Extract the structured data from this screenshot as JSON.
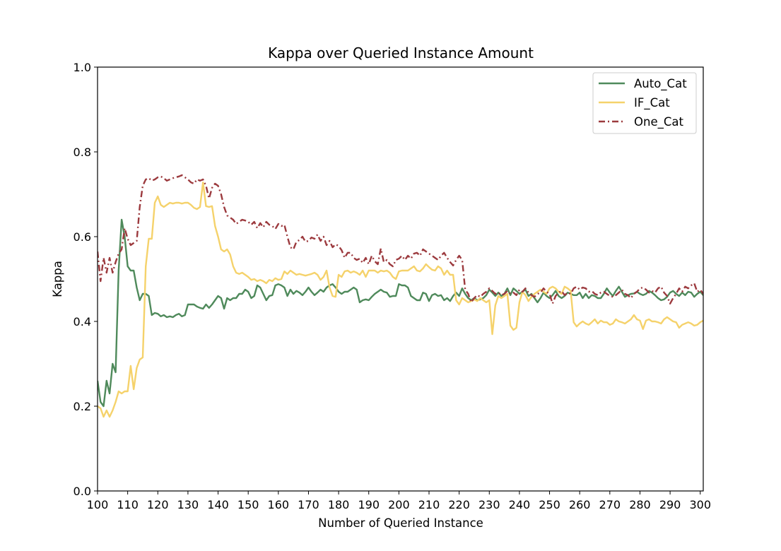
{
  "chart_data": {
    "type": "line",
    "title": "Kappa over Queried Instance Amount",
    "xlabel": "Number of Queried Instance",
    "ylabel": "Kappa",
    "xlim": [
      100,
      301
    ],
    "ylim": [
      0.0,
      1.0
    ],
    "x_ticks": [
      100,
      110,
      120,
      130,
      140,
      150,
      160,
      170,
      180,
      190,
      200,
      210,
      220,
      230,
      240,
      250,
      260,
      270,
      280,
      290,
      300
    ],
    "x_tick_labels": [
      "100",
      "110",
      "120",
      "130",
      "140",
      "150",
      "160",
      "170",
      "180",
      "190",
      "200",
      "210",
      "220",
      "230",
      "240",
      "250",
      "260",
      "270",
      "280",
      "290",
      "300"
    ],
    "y_ticks": [
      0.0,
      0.2,
      0.4,
      0.6,
      0.8,
      1.0
    ],
    "y_tick_labels": [
      "0.0",
      "0.2",
      "0.4",
      "0.6",
      "0.8",
      "1.0"
    ],
    "grid": false,
    "legend_position": "top-right",
    "x_start": 100,
    "x_step": 1,
    "series": [
      {
        "name": "Auto_Cat",
        "color": "#4f8a5b",
        "dash": "solid",
        "values": [
          0.26,
          0.21,
          0.2,
          0.26,
          0.23,
          0.3,
          0.28,
          0.52,
          0.64,
          0.6,
          0.53,
          0.52,
          0.52,
          0.48,
          0.45,
          0.465,
          0.465,
          0.46,
          0.415,
          0.42,
          0.418,
          0.412,
          0.415,
          0.41,
          0.412,
          0.41,
          0.415,
          0.418,
          0.412,
          0.415,
          0.44,
          0.44,
          0.44,
          0.435,
          0.432,
          0.43,
          0.44,
          0.432,
          0.44,
          0.45,
          0.46,
          0.455,
          0.43,
          0.455,
          0.45,
          0.455,
          0.455,
          0.465,
          0.465,
          0.475,
          0.47,
          0.455,
          0.46,
          0.485,
          0.48,
          0.465,
          0.45,
          0.46,
          0.462,
          0.485,
          0.488,
          0.485,
          0.48,
          0.46,
          0.475,
          0.465,
          0.472,
          0.468,
          0.462,
          0.47,
          0.48,
          0.47,
          0.462,
          0.468,
          0.475,
          0.47,
          0.48,
          0.485,
          0.488,
          0.48,
          0.47,
          0.465,
          0.47,
          0.47,
          0.475,
          0.48,
          0.475,
          0.445,
          0.45,
          0.452,
          0.45,
          0.458,
          0.465,
          0.47,
          0.475,
          0.47,
          0.468,
          0.458,
          0.46,
          0.46,
          0.488,
          0.485,
          0.485,
          0.48,
          0.46,
          0.455,
          0.45,
          0.45,
          0.468,
          0.465,
          0.448,
          0.462,
          0.465,
          0.46,
          0.462,
          0.45,
          0.455,
          0.448,
          0.46,
          0.468,
          0.46,
          0.478,
          0.465,
          0.455,
          0.45,
          0.455,
          0.45,
          0.452,
          0.455,
          0.462,
          0.475,
          0.468,
          0.46,
          0.468,
          0.46,
          0.465,
          0.478,
          0.462,
          0.478,
          0.472,
          0.465,
          0.47,
          0.475,
          0.46,
          0.465,
          0.455,
          0.445,
          0.455,
          0.468,
          0.46,
          0.455,
          0.462,
          0.472,
          0.46,
          0.455,
          0.46,
          0.468,
          0.465,
          0.462,
          0.462,
          0.468,
          0.455,
          0.465,
          0.455,
          0.462,
          0.46,
          0.455,
          0.455,
          0.465,
          0.478,
          0.468,
          0.46,
          0.472,
          0.482,
          0.47,
          0.458,
          0.462,
          0.465,
          0.466,
          0.47,
          0.465,
          0.462,
          0.465,
          0.472,
          0.468,
          0.462,
          0.455,
          0.45,
          0.452,
          0.458,
          0.468,
          0.472,
          0.465,
          0.46,
          0.468,
          0.462,
          0.47,
          0.468,
          0.458,
          0.465,
          0.47,
          0.462,
          0.46,
          0.468,
          0.465,
          0.462
        ]
      },
      {
        "name": "IF_Cat",
        "color": "#f5d26b",
        "dash": "solid",
        "values": [
          0.2,
          0.195,
          0.175,
          0.19,
          0.175,
          0.19,
          0.21,
          0.235,
          0.23,
          0.235,
          0.235,
          0.295,
          0.24,
          0.29,
          0.31,
          0.315,
          0.53,
          0.595,
          0.595,
          0.68,
          0.695,
          0.675,
          0.67,
          0.675,
          0.68,
          0.678,
          0.68,
          0.68,
          0.678,
          0.68,
          0.68,
          0.675,
          0.668,
          0.665,
          0.67,
          0.728,
          0.672,
          0.67,
          0.672,
          0.625,
          0.6,
          0.57,
          0.565,
          0.57,
          0.558,
          0.53,
          0.515,
          0.512,
          0.515,
          0.51,
          0.505,
          0.498,
          0.5,
          0.495,
          0.498,
          0.495,
          0.49,
          0.498,
          0.495,
          0.502,
          0.498,
          0.5,
          0.518,
          0.512,
          0.52,
          0.515,
          0.51,
          0.512,
          0.51,
          0.508,
          0.51,
          0.512,
          0.515,
          0.51,
          0.498,
          0.505,
          0.52,
          0.48,
          0.46,
          0.458,
          0.51,
          0.505,
          0.518,
          0.52,
          0.515,
          0.518,
          0.515,
          0.51,
          0.52,
          0.505,
          0.52,
          0.52,
          0.52,
          0.515,
          0.52,
          0.518,
          0.52,
          0.515,
          0.505,
          0.5,
          0.518,
          0.52,
          0.52,
          0.52,
          0.525,
          0.53,
          0.52,
          0.518,
          0.525,
          0.535,
          0.528,
          0.522,
          0.52,
          0.53,
          0.525,
          0.51,
          0.52,
          0.51,
          0.51,
          0.45,
          0.44,
          0.455,
          0.45,
          0.445,
          0.448,
          0.452,
          0.448,
          0.455,
          0.45,
          0.445,
          0.45,
          0.37,
          0.438,
          0.46,
          0.455,
          0.46,
          0.465,
          0.39,
          0.38,
          0.385,
          0.445,
          0.47,
          0.462,
          0.448,
          0.458,
          0.465,
          0.47,
          0.475,
          0.47,
          0.465,
          0.478,
          0.482,
          0.478,
          0.47,
          0.465,
          0.482,
          0.478,
          0.472,
          0.398,
          0.388,
          0.395,
          0.4,
          0.395,
          0.392,
          0.398,
          0.405,
          0.395,
          0.402,
          0.398,
          0.398,
          0.392,
          0.395,
          0.405,
          0.4,
          0.398,
          0.395,
          0.4,
          0.405,
          0.415,
          0.405,
          0.402,
          0.382,
          0.402,
          0.405,
          0.4,
          0.4,
          0.398,
          0.395,
          0.405,
          0.41,
          0.405,
          0.4,
          0.398,
          0.385,
          0.392,
          0.395,
          0.398,
          0.395,
          0.39,
          0.392,
          0.398,
          0.402,
          0.395,
          0.392,
          0.39,
          0.395,
          0.39
        ]
      },
      {
        "name": "One_Cat",
        "color": "#9c3a3e",
        "dash": "dashdot",
        "values": [
          0.565,
          0.495,
          0.55,
          0.515,
          0.55,
          0.515,
          0.54,
          0.56,
          0.57,
          0.62,
          0.595,
          0.58,
          0.585,
          0.59,
          0.67,
          0.72,
          0.735,
          0.738,
          0.732,
          0.735,
          0.74,
          0.742,
          0.738,
          0.732,
          0.735,
          0.738,
          0.74,
          0.742,
          0.745,
          0.74,
          0.735,
          0.728,
          0.725,
          0.735,
          0.732,
          0.735,
          0.72,
          0.69,
          0.715,
          0.725,
          0.72,
          0.7,
          0.67,
          0.65,
          0.645,
          0.64,
          0.63,
          0.635,
          0.64,
          0.638,
          0.635,
          0.628,
          0.635,
          0.62,
          0.632,
          0.622,
          0.635,
          0.628,
          0.625,
          0.618,
          0.63,
          0.625,
          0.628,
          0.6,
          0.575,
          0.57,
          0.588,
          0.592,
          0.6,
          0.588,
          0.59,
          0.598,
          0.595,
          0.605,
          0.59,
          0.6,
          0.58,
          0.59,
          0.575,
          0.582,
          0.578,
          0.568,
          0.55,
          0.562,
          0.562,
          0.55,
          0.545,
          0.548,
          0.538,
          0.55,
          0.535,
          0.555,
          0.542,
          0.535,
          0.572,
          0.54,
          0.545,
          0.535,
          0.53,
          0.545,
          0.548,
          0.555,
          0.545,
          0.555,
          0.548,
          0.56,
          0.562,
          0.555,
          0.57,
          0.565,
          0.56,
          0.555,
          0.55,
          0.545,
          0.555,
          0.562,
          0.55,
          0.54,
          0.532,
          0.545,
          0.555,
          0.545,
          0.475,
          0.465,
          0.445,
          0.455,
          0.462,
          0.458,
          0.465,
          0.47,
          0.478,
          0.472,
          0.465,
          0.468,
          0.462,
          0.465,
          0.472,
          0.465,
          0.468,
          0.462,
          0.475,
          0.47,
          0.478,
          0.468,
          0.462,
          0.458,
          0.465,
          0.468,
          0.478,
          0.47,
          0.465,
          0.442,
          0.46,
          0.468,
          0.472,
          0.462,
          0.468,
          0.465,
          0.478,
          0.482,
          0.475,
          0.48,
          0.478,
          0.47,
          0.472,
          0.465,
          0.462,
          0.468,
          0.47,
          0.465,
          0.46,
          0.458,
          0.462,
          0.468,
          0.475,
          0.465,
          0.462,
          0.455,
          0.465,
          0.47,
          0.478,
          0.48,
          0.475,
          0.468,
          0.472,
          0.468,
          0.478,
          0.482,
          0.468,
          0.46,
          0.442,
          0.455,
          0.465,
          0.478,
          0.47,
          0.482,
          0.478,
          0.485,
          0.49,
          0.47,
          0.475,
          0.465,
          0.47,
          0.475,
          0.48,
          0.482,
          0.478,
          0.485,
          0.475,
          0.47,
          0.48,
          0.485
        ]
      }
    ]
  }
}
